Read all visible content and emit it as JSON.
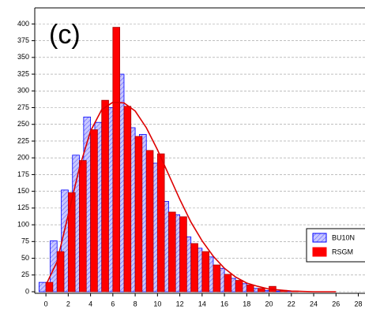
{
  "chart_data": {
    "type": "histogram-pair",
    "annotation": "(c)",
    "x": [
      0,
      1,
      2,
      3,
      4,
      5,
      6,
      7,
      8,
      9,
      10,
      11,
      12,
      13,
      14,
      15,
      16,
      17,
      18,
      19,
      20,
      21,
      22
    ],
    "series": [
      {
        "name": "BU10N",
        "color": "#0000ff",
        "values": [
          14,
          76,
          152,
          204,
          261,
          253,
          275,
          325,
          245,
          235,
          192,
          135,
          115,
          82,
          65,
          52,
          35,
          20,
          12,
          5,
          2,
          1,
          1
        ]
      },
      {
        "name": "RSGM",
        "color": "#ff0000",
        "values": [
          14,
          60,
          148,
          196,
          242,
          286,
          395,
          277,
          232,
          211,
          206,
          119,
          112,
          72,
          60,
          40,
          26,
          17,
          10,
          5,
          8,
          2,
          1
        ]
      }
    ],
    "curve": {
      "color": "#dd0000",
      "x": [
        0,
        1,
        2,
        3,
        4,
        5,
        6,
        7,
        8,
        9,
        10,
        11,
        12,
        13,
        14,
        15,
        16,
        17,
        18,
        19,
        20,
        22,
        24,
        26
      ],
      "values": [
        10,
        45,
        115,
        185,
        240,
        272,
        283,
        282,
        270,
        245,
        212,
        175,
        138,
        104,
        76,
        53,
        35,
        22,
        13,
        8,
        4,
        1,
        0,
        0
      ]
    },
    "xlim": [
      -1,
      28.6
    ],
    "ylim": [
      0,
      424
    ],
    "xticks": [
      0,
      2,
      4,
      6,
      8,
      10,
      12,
      14,
      16,
      18,
      20,
      22,
      24,
      26,
      28
    ],
    "yticks": [
      0,
      25,
      50,
      75,
      100,
      125,
      150,
      175,
      200,
      225,
      250,
      275,
      300,
      325,
      350,
      375,
      400
    ],
    "grid": true
  }
}
